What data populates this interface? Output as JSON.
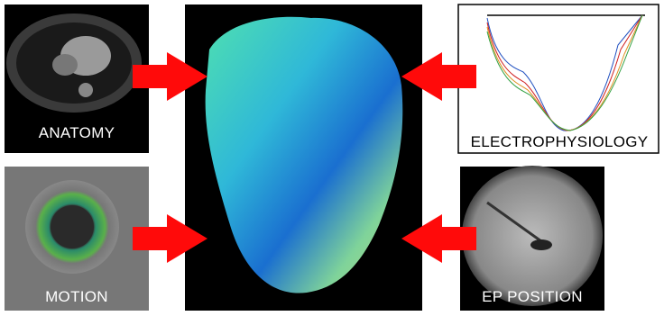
{
  "panels": [
    {
      "label": "ANATOMY"
    },
    {
      "label": "ELECTROPHYSIOLOGY"
    },
    {
      "label": "MOTION"
    },
    {
      "label": "EP POSITION"
    }
  ]
}
